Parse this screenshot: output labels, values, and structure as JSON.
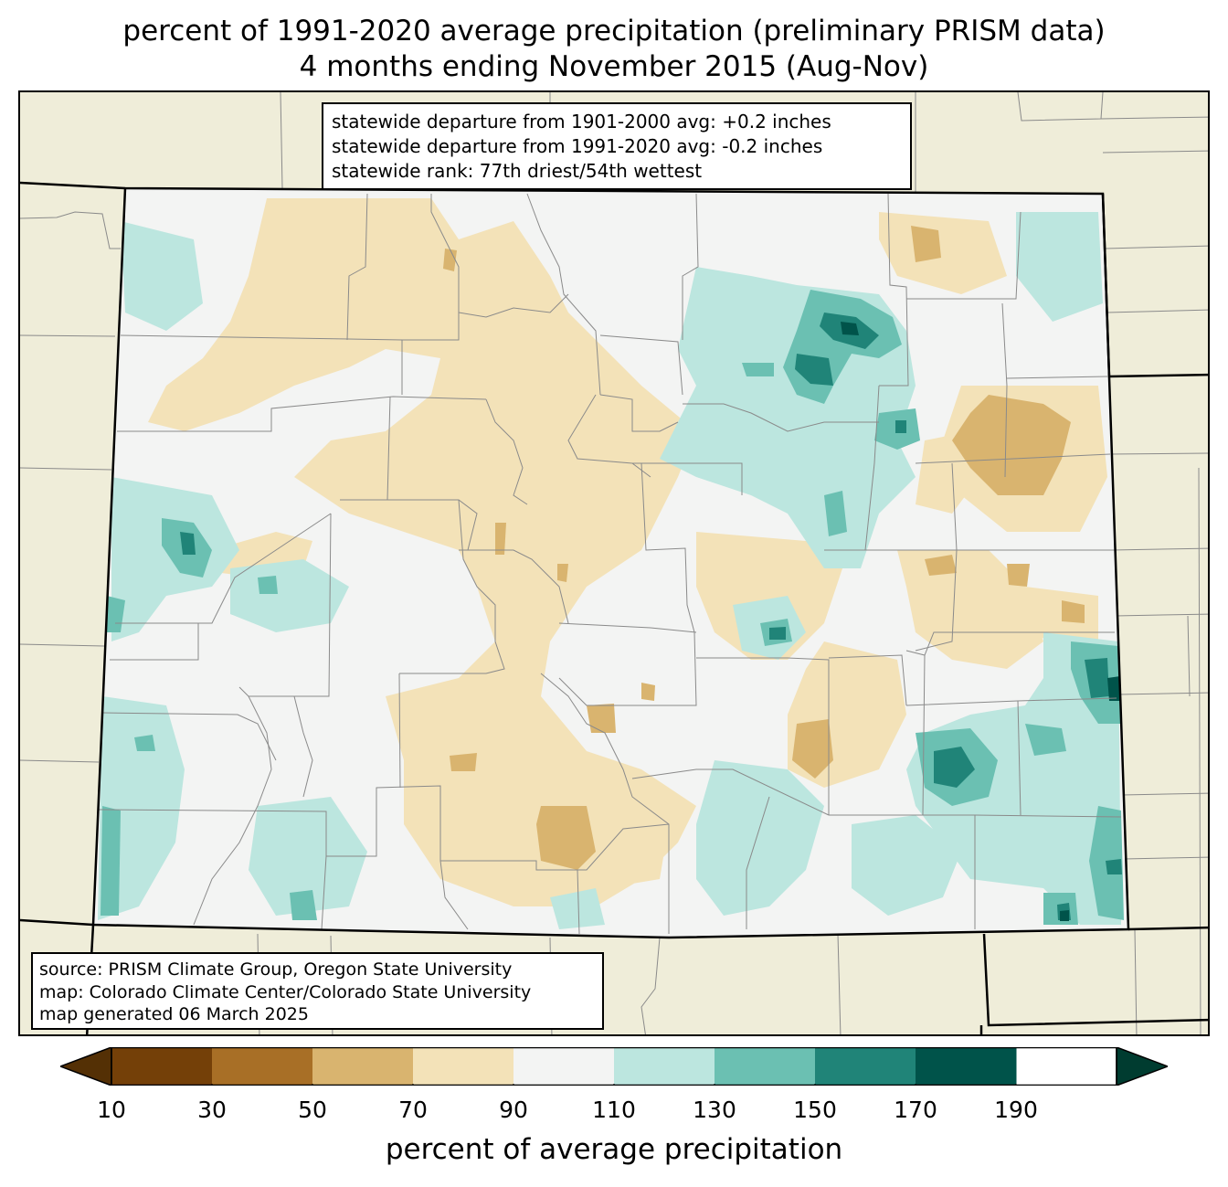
{
  "title": {
    "line1": "percent of 1991-2020 average precipitation (preliminary PRISM data)",
    "line2": "4 months ending November 2015 (Aug-Nov)"
  },
  "stats_box": {
    "line1": "statewide departure from 1901-2000 avg: +0.2 inches",
    "line2": "statewide departure from 1991-2020 avg: -0.2 inches",
    "line3": "statewide rank: 77th driest/54th wettest"
  },
  "source_box": {
    "line1": "source: PRISM Climate Group, Oregon State University",
    "line2": "map: Colorado Climate Center/Colorado State University",
    "line3": "map generated 06 March 2025"
  },
  "colorbar": {
    "label": "percent of average precipitation",
    "ticks": [
      "10",
      "30",
      "50",
      "70",
      "90",
      "110",
      "130",
      "150",
      "170",
      "190"
    ],
    "bins": [
      {
        "range": "<10",
        "color": "#543005"
      },
      {
        "range": "10-30",
        "color": "#744008"
      },
      {
        "range": "30-50",
        "color": "#a86f26"
      },
      {
        "range": "50-70",
        "color": "#d9b46f"
      },
      {
        "range": "70-90",
        "color": "#f3e2b8"
      },
      {
        "range": "90-110",
        "color": "#f3f4f3"
      },
      {
        "range": "110-130",
        "color": "#bce6df"
      },
      {
        "range": "130-150",
        "color": "#6bc0b2"
      },
      {
        "range": "150-170",
        "color": "#208478"
      },
      {
        "range": "170-190",
        "color": "#00534a"
      },
      {
        "range": ">190",
        "color": "#003c30"
      }
    ]
  },
  "map": {
    "background_color": "#efedd9",
    "state_fill": "#f3f4f3",
    "boundary_color": "#000000",
    "county_color": "#8a8a8a"
  }
}
